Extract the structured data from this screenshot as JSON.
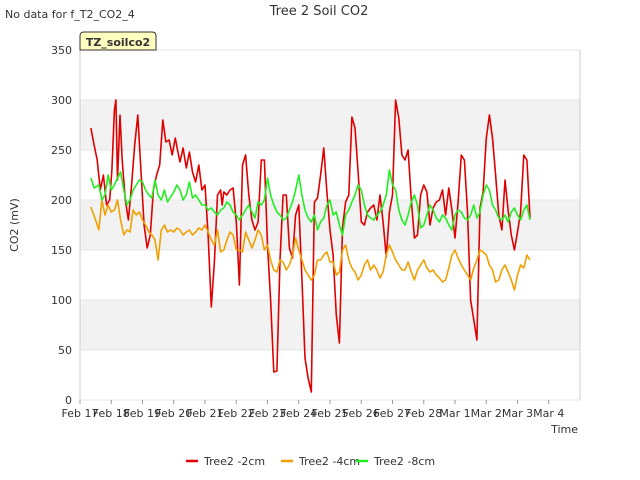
{
  "note": "No data for f_T2_CO2_4",
  "chart_data": {
    "type": "line",
    "title": "Tree 2 Soil CO2",
    "xlabel": "Time",
    "ylabel": "CO2 (mV)",
    "ylim": [
      0,
      350
    ],
    "xlim": [
      0,
      16
    ],
    "y_ticks": [
      0,
      50,
      100,
      150,
      200,
      250,
      300,
      350
    ],
    "x_ticks": [
      {
        "x": 0,
        "label": "Feb 17"
      },
      {
        "x": 1,
        "label": "Feb 18"
      },
      {
        "x": 2,
        "label": "Feb 19"
      },
      {
        "x": 3,
        "label": "Feb 20"
      },
      {
        "x": 4,
        "label": "Feb 21"
      },
      {
        "x": 5,
        "label": "Feb 22"
      },
      {
        "x": 6,
        "label": "Feb 23"
      },
      {
        "x": 7,
        "label": "Feb 24"
      },
      {
        "x": 8,
        "label": "Feb 25"
      },
      {
        "x": 9,
        "label": "Feb 26"
      },
      {
        "x": 10,
        "label": "Feb 27"
      },
      {
        "x": 11,
        "label": "Feb 28"
      },
      {
        "x": 12,
        "label": "Mar 1"
      },
      {
        "x": 13,
        "label": "Mar 2"
      },
      {
        "x": 14,
        "label": "Mar 3"
      },
      {
        "x": 15,
        "label": "Mar 4"
      }
    ],
    "annotation": "TZ_soilco2",
    "legend_position": "bottom-center",
    "series": [
      {
        "name": "Tree2 -2cm",
        "color": "#e00000",
        "x": [
          0.35,
          0.45,
          0.55,
          0.65,
          0.75,
          0.85,
          0.95,
          1.02,
          1.1,
          1.15,
          1.2,
          1.28,
          1.35,
          1.45,
          1.55,
          1.65,
          1.75,
          1.85,
          1.95,
          2.05,
          2.15,
          2.25,
          2.35,
          2.45,
          2.55,
          2.65,
          2.75,
          2.85,
          2.95,
          3.05,
          3.12,
          3.2,
          3.3,
          3.4,
          3.5,
          3.6,
          3.7,
          3.8,
          3.9,
          4.0,
          4.1,
          4.2,
          4.3,
          4.4,
          4.5,
          4.55,
          4.6,
          4.7,
          4.8,
          4.9,
          5.0,
          5.1,
          5.2,
          5.3,
          5.4,
          5.5,
          5.6,
          5.7,
          5.8,
          5.9,
          6.0,
          6.1,
          6.2,
          6.3,
          6.4,
          6.5,
          6.6,
          6.7,
          6.8,
          6.9,
          7.0,
          7.1,
          7.2,
          7.3,
          7.4,
          7.5,
          7.6,
          7.7,
          7.8,
          7.9,
          8.0,
          8.1,
          8.2,
          8.3,
          8.4,
          8.5,
          8.6,
          8.7,
          8.8,
          8.9,
          9.0,
          9.1,
          9.2,
          9.3,
          9.4,
          9.5,
          9.6,
          9.7,
          9.8,
          9.9,
          10.0,
          10.1,
          10.2,
          10.3,
          10.4,
          10.5,
          10.6,
          10.7,
          10.8,
          10.9,
          11.0,
          11.1,
          11.2,
          11.3,
          11.4,
          11.5,
          11.6,
          11.7,
          11.8,
          11.9,
          12.0,
          12.1,
          12.2,
          12.3,
          12.4,
          12.5,
          12.6,
          12.7,
          12.8,
          12.9,
          13.0,
          13.1,
          13.2,
          13.3,
          13.4,
          13.5,
          13.6,
          13.7,
          13.8,
          13.9,
          14.0,
          14.1,
          14.2,
          14.3,
          14.4
        ],
        "y": [
          272,
          255,
          240,
          210,
          225,
          195,
          200,
          230,
          290,
          300,
          220,
          285,
          240,
          200,
          180,
          215,
          255,
          285,
          230,
          175,
          152,
          165,
          210,
          225,
          235,
          280,
          258,
          260,
          245,
          262,
          250,
          238,
          252,
          232,
          248,
          228,
          218,
          235,
          210,
          215,
          165,
          93,
          138,
          205,
          210,
          195,
          208,
          205,
          210,
          212,
          178,
          115,
          235,
          245,
          205,
          180,
          170,
          178,
          240,
          240,
          155,
          100,
          28,
          29,
          140,
          205,
          205,
          152,
          142,
          185,
          195,
          122,
          42,
          22,
          8,
          198,
          202,
          225,
          252,
          208,
          170,
          145,
          85,
          57,
          172,
          198,
          205,
          283,
          272,
          228,
          178,
          175,
          188,
          192,
          195,
          180,
          205,
          178,
          143,
          188,
          205,
          300,
          282,
          245,
          240,
          250,
          200,
          162,
          165,
          205,
          215,
          208,
          175,
          192,
          198,
          200,
          210,
          185,
          212,
          190,
          162,
          198,
          245,
          240,
          188,
          100,
          80,
          60,
          192,
          208,
          262,
          285,
          262,
          225,
          185,
          170,
          220,
          190,
          165,
          150,
          168,
          188,
          245,
          240,
          182
        ]
      },
      {
        "name": "Tree2 -4cm",
        "color": "#f0a000",
        "x": [
          0.35,
          0.5,
          0.6,
          0.7,
          0.8,
          0.9,
          1.0,
          1.1,
          1.2,
          1.3,
          1.4,
          1.5,
          1.6,
          1.7,
          1.8,
          1.9,
          2.0,
          2.1,
          2.2,
          2.3,
          2.4,
          2.5,
          2.6,
          2.7,
          2.8,
          2.9,
          3.0,
          3.1,
          3.2,
          3.3,
          3.4,
          3.5,
          3.6,
          3.7,
          3.8,
          3.9,
          4.0,
          4.1,
          4.2,
          4.3,
          4.4,
          4.5,
          4.6,
          4.7,
          4.8,
          4.9,
          5.0,
          5.1,
          5.2,
          5.3,
          5.4,
          5.5,
          5.6,
          5.7,
          5.8,
          5.9,
          6.0,
          6.1,
          6.2,
          6.3,
          6.4,
          6.5,
          6.6,
          6.7,
          6.8,
          6.9,
          7.0,
          7.1,
          7.2,
          7.3,
          7.4,
          7.5,
          7.6,
          7.7,
          7.8,
          7.9,
          8.0,
          8.1,
          8.2,
          8.3,
          8.4,
          8.5,
          8.6,
          8.7,
          8.8,
          8.9,
          9.0,
          9.1,
          9.2,
          9.3,
          9.4,
          9.5,
          9.6,
          9.7,
          9.8,
          9.9,
          10.0,
          10.1,
          10.2,
          10.3,
          10.4,
          10.5,
          10.6,
          10.7,
          10.8,
          10.9,
          11.0,
          11.1,
          11.2,
          11.3,
          11.4,
          11.5,
          11.6,
          11.7,
          11.8,
          11.9,
          12.0,
          12.1,
          12.2,
          12.3,
          12.4,
          12.5,
          12.6,
          12.7,
          12.8,
          12.9,
          13.0,
          13.1,
          13.2,
          13.3,
          13.4,
          13.5,
          13.6,
          13.7,
          13.8,
          13.9,
          14.0,
          14.1,
          14.2,
          14.3,
          14.4
        ],
        "y": [
          193,
          180,
          170,
          200,
          185,
          195,
          188,
          190,
          200,
          180,
          165,
          170,
          168,
          190,
          185,
          188,
          180,
          175,
          168,
          165,
          160,
          140,
          170,
          175,
          168,
          170,
          168,
          172,
          170,
          165,
          168,
          170,
          165,
          168,
          172,
          170,
          175,
          168,
          160,
          155,
          170,
          148,
          150,
          160,
          168,
          165,
          150,
          150,
          148,
          168,
          160,
          152,
          160,
          170,
          165,
          150,
          155,
          140,
          130,
          128,
          140,
          138,
          130,
          135,
          145,
          162,
          150,
          140,
          130,
          125,
          120,
          125,
          140,
          140,
          145,
          148,
          138,
          138,
          125,
          128,
          150,
          155,
          140,
          132,
          128,
          120,
          125,
          135,
          140,
          130,
          135,
          130,
          122,
          128,
          145,
          155,
          148,
          140,
          135,
          130,
          130,
          138,
          128,
          120,
          130,
          135,
          140,
          132,
          128,
          130,
          125,
          122,
          118,
          120,
          132,
          145,
          150,
          142,
          135,
          130,
          125,
          120,
          132,
          140,
          150,
          148,
          145,
          135,
          130,
          118,
          120,
          130,
          135,
          128,
          120,
          110,
          125,
          135,
          132,
          145,
          140
        ]
      },
      {
        "name": "Tree2 -8cm",
        "color": "#22ee22",
        "x": [
          0.35,
          0.45,
          0.6,
          0.7,
          0.8,
          0.9,
          1.0,
          1.1,
          1.2,
          1.3,
          1.4,
          1.5,
          1.6,
          1.7,
          1.8,
          1.9,
          2.0,
          2.1,
          2.2,
          2.3,
          2.4,
          2.5,
          2.6,
          2.7,
          2.8,
          2.9,
          3.0,
          3.1,
          3.2,
          3.3,
          3.4,
          3.5,
          3.6,
          3.7,
          3.8,
          3.9,
          4.0,
          4.1,
          4.2,
          4.3,
          4.4,
          4.5,
          4.6,
          4.7,
          4.8,
          4.9,
          5.0,
          5.1,
          5.2,
          5.3,
          5.4,
          5.5,
          5.6,
          5.7,
          5.8,
          5.9,
          6.0,
          6.1,
          6.2,
          6.3,
          6.4,
          6.5,
          6.6,
          6.7,
          6.8,
          6.9,
          7.0,
          7.1,
          7.2,
          7.3,
          7.4,
          7.5,
          7.6,
          7.7,
          7.8,
          7.9,
          8.0,
          8.1,
          8.2,
          8.3,
          8.4,
          8.5,
          8.6,
          8.7,
          8.8,
          8.9,
          9.0,
          9.1,
          9.2,
          9.3,
          9.4,
          9.5,
          9.6,
          9.7,
          9.8,
          9.9,
          10.0,
          10.1,
          10.2,
          10.3,
          10.4,
          10.5,
          10.6,
          10.7,
          10.8,
          10.9,
          11.0,
          11.1,
          11.2,
          11.3,
          11.4,
          11.5,
          11.6,
          11.7,
          11.8,
          11.9,
          12.0,
          12.1,
          12.2,
          12.3,
          12.4,
          12.5,
          12.6,
          12.7,
          12.8,
          12.9,
          13.0,
          13.1,
          13.2,
          13.3,
          13.4,
          13.5,
          13.6,
          13.7,
          13.8,
          13.9,
          14.0,
          14.1,
          14.2,
          14.3,
          14.4
        ],
        "y": [
          222,
          212,
          215,
          200,
          205,
          225,
          210,
          215,
          222,
          228,
          210,
          195,
          200,
          210,
          215,
          220,
          218,
          210,
          205,
          202,
          220,
          205,
          200,
          210,
          198,
          203,
          208,
          215,
          210,
          200,
          205,
          218,
          202,
          205,
          200,
          195,
          195,
          190,
          192,
          188,
          185,
          190,
          192,
          198,
          195,
          188,
          185,
          180,
          185,
          190,
          195,
          188,
          182,
          198,
          195,
          200,
          222,
          205,
          195,
          188,
          185,
          180,
          182,
          190,
          198,
          210,
          225,
          205,
          190,
          182,
          178,
          185,
          170,
          178,
          182,
          195,
          200,
          185,
          188,
          175,
          165,
          185,
          190,
          198,
          205,
          215,
          210,
          195,
          185,
          182,
          180,
          185,
          188,
          195,
          205,
          230,
          215,
          210,
          190,
          180,
          175,
          185,
          198,
          205,
          195,
          172,
          175,
          185,
          195,
          190,
          182,
          178,
          185,
          182,
          175,
          170,
          185,
          190,
          188,
          182,
          180,
          185,
          195,
          182,
          188,
          205,
          215,
          210,
          195,
          190,
          182,
          180,
          185,
          178,
          188,
          192,
          185,
          180,
          190,
          195,
          180
        ]
      }
    ]
  }
}
